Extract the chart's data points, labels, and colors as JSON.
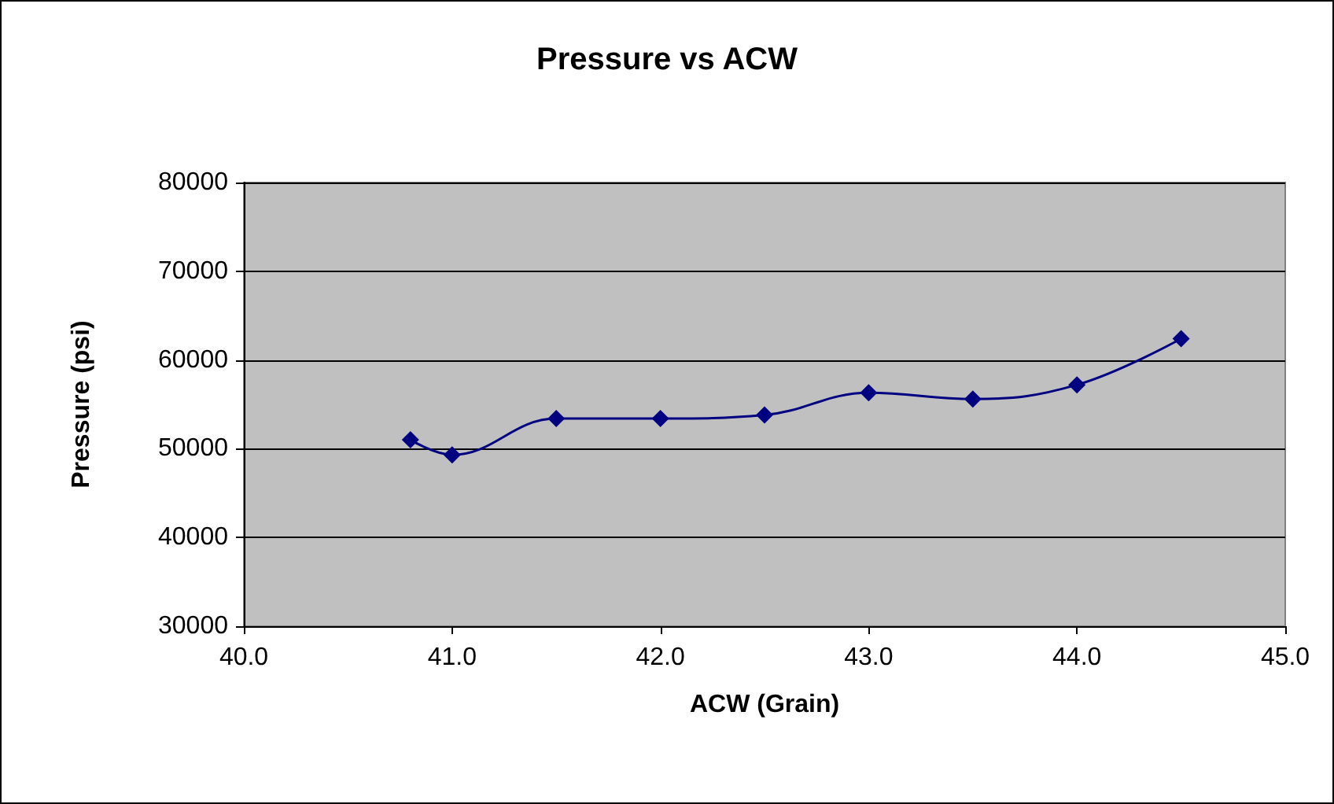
{
  "chart_data": {
    "type": "line",
    "title": "Pressure vs ACW",
    "xlabel": "ACW (Grain)",
    "ylabel": "Pressure (psi)",
    "x": [
      40.8,
      41.0,
      41.5,
      42.0,
      42.5,
      43.0,
      43.5,
      44.0,
      44.5
    ],
    "series": [
      {
        "color": "#000080",
        "values": [
          51000,
          49300,
          53400,
          53400,
          53800,
          56300,
          55600,
          57200,
          62400
        ]
      }
    ],
    "xlim": [
      40,
      45
    ],
    "xticks": [
      {
        "value": 40,
        "label": "40.0"
      },
      {
        "value": 41,
        "label": "41.0"
      },
      {
        "value": 42,
        "label": "42.0"
      },
      {
        "value": 43,
        "label": "43.0"
      },
      {
        "value": 44,
        "label": "44.0"
      },
      {
        "value": 45,
        "label": "45.0"
      }
    ],
    "ylim": [
      30000,
      80000
    ],
    "yticks": [
      30000,
      40000,
      50000,
      60000,
      70000,
      80000
    ],
    "grid": "y",
    "marker": "diamond",
    "line_style": "solid"
  }
}
